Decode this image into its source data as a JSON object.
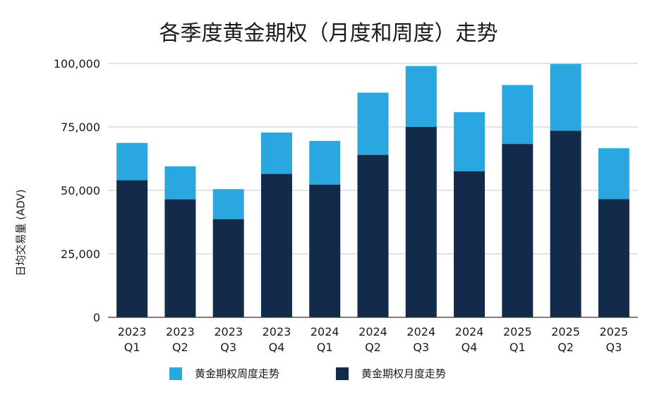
{
  "chart_data": {
    "type": "bar",
    "stacked": true,
    "title": "各季度黄金期权（月度和周度）走势",
    "xlabel": "",
    "ylabel": "日均交易量 (ADV)",
    "ylim": [
      0,
      100000
    ],
    "yticks": [
      "0",
      "25,000",
      "50,000",
      "75,000",
      "100,000"
    ],
    "categories": [
      [
        "2023",
        "Q1"
      ],
      [
        "2023",
        "Q2"
      ],
      [
        "2023",
        "Q3"
      ],
      [
        "2023",
        "Q4"
      ],
      [
        "2024",
        "Q1"
      ],
      [
        "2024",
        "Q2"
      ],
      [
        "2024",
        "Q3"
      ],
      [
        "2024",
        "Q4"
      ],
      [
        "2025",
        "Q1"
      ],
      [
        "2025",
        "Q2"
      ],
      [
        "2025",
        "Q3"
      ]
    ],
    "series": [
      {
        "name": "黄金期权月度走势",
        "color": "#132b4a",
        "values": [
          54000,
          46500,
          38700,
          56500,
          52300,
          64000,
          75000,
          57500,
          68300,
          73500,
          46600
        ]
      },
      {
        "name": "黄金期权周度走势",
        "color": "#29a8e0",
        "values": [
          14700,
          13000,
          11800,
          16300,
          17200,
          24500,
          24000,
          23300,
          23200,
          26300,
          20000
        ]
      }
    ],
    "grid": true,
    "legend_position": "bottom"
  },
  "legend": {
    "weekly_label": "黄金期权周度走势",
    "monthly_label": "黄金期权月度走势"
  }
}
